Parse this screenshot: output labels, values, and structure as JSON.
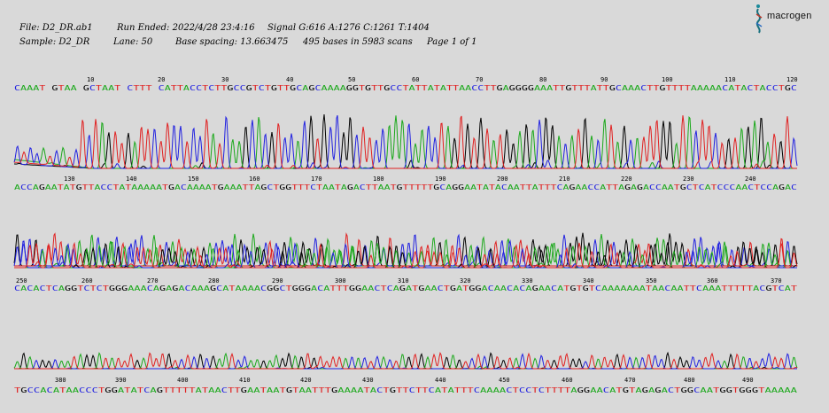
{
  "header": {
    "file": "File: D2_DR.ab1",
    "run_ended": "Run Ended: 2022/4/28 23:4:16",
    "signal": "Signal G:616 A:1276 C:1261 T:1404",
    "sample": "Sample: D2_DR",
    "lane": "Lane: 50",
    "base_spacing": "Base spacing: 13.663475",
    "bases_scans": "495 bases in 5983 scans",
    "page": "Page 1 of 1"
  },
  "logo": {
    "text": "macrogen",
    "icon": "macrogen-logo-icon"
  },
  "colors": {
    "A": "#1aa81a",
    "C": "#2020e0",
    "G": "#000000",
    "T": "#e02020"
  },
  "panels": [
    {
      "ticks": [
        "10",
        "20",
        "30",
        "40",
        "50",
        "60",
        "70",
        "80",
        "90",
        "100",
        "110",
        "120"
      ],
      "sequence": "CAAAT GTAA GCTAAT CTTT CATTACCTCTTGCCGTCTGTTGCAGCAAAAGGTGTTGCCTATTATATTAACCTTGAGGGGAAATTGTTTATTGCAAACTTGTTTTAAAAACATACTACCTGC"
    },
    {
      "ticks": [
        "130",
        "140",
        "150",
        "160",
        "170",
        "180",
        "190",
        "200",
        "210",
        "220",
        "230",
        "240"
      ],
      "sequence": "ACCAGAATATGTTACCTATAAAAATGACAAAATGAAATTAGCTGGTTTCTAATAGACTTAATGTTTTTGCAGGAATATACAATTATTTCAGAACCATTAGAGACCAATGCTCATCCCAACTCCAGAC"
    },
    {
      "ticks": [
        "250",
        "260",
        "270",
        "280",
        "290",
        "300",
        "310",
        "320",
        "330",
        "340",
        "350",
        "360",
        "370"
      ],
      "sequence": "CACACTCAGGTCTCTGGGAAACAGAGACAAAGCATAAAACGGCTGGGACATTTGGAACTCAGATGAACTGATGGACAACACAGAACATGTGTCAAAAAAATAACAATTCAAATTTTTACGTCAT"
    },
    {
      "ticks": [
        "380",
        "390",
        "400",
        "410",
        "420",
        "430",
        "440",
        "450",
        "460",
        "470",
        "480",
        "490"
      ],
      "sequence": "TGCCACATAACCCTGGATATCAGTTTTTATAACTTGAATAATGTAATTTGAAAATACTGTTCTTCATATTTCAAAACTCCTCTTTTAGGAACATGTAGAGACTGGCAATGGTGGGTAAAAA"
    }
  ]
}
